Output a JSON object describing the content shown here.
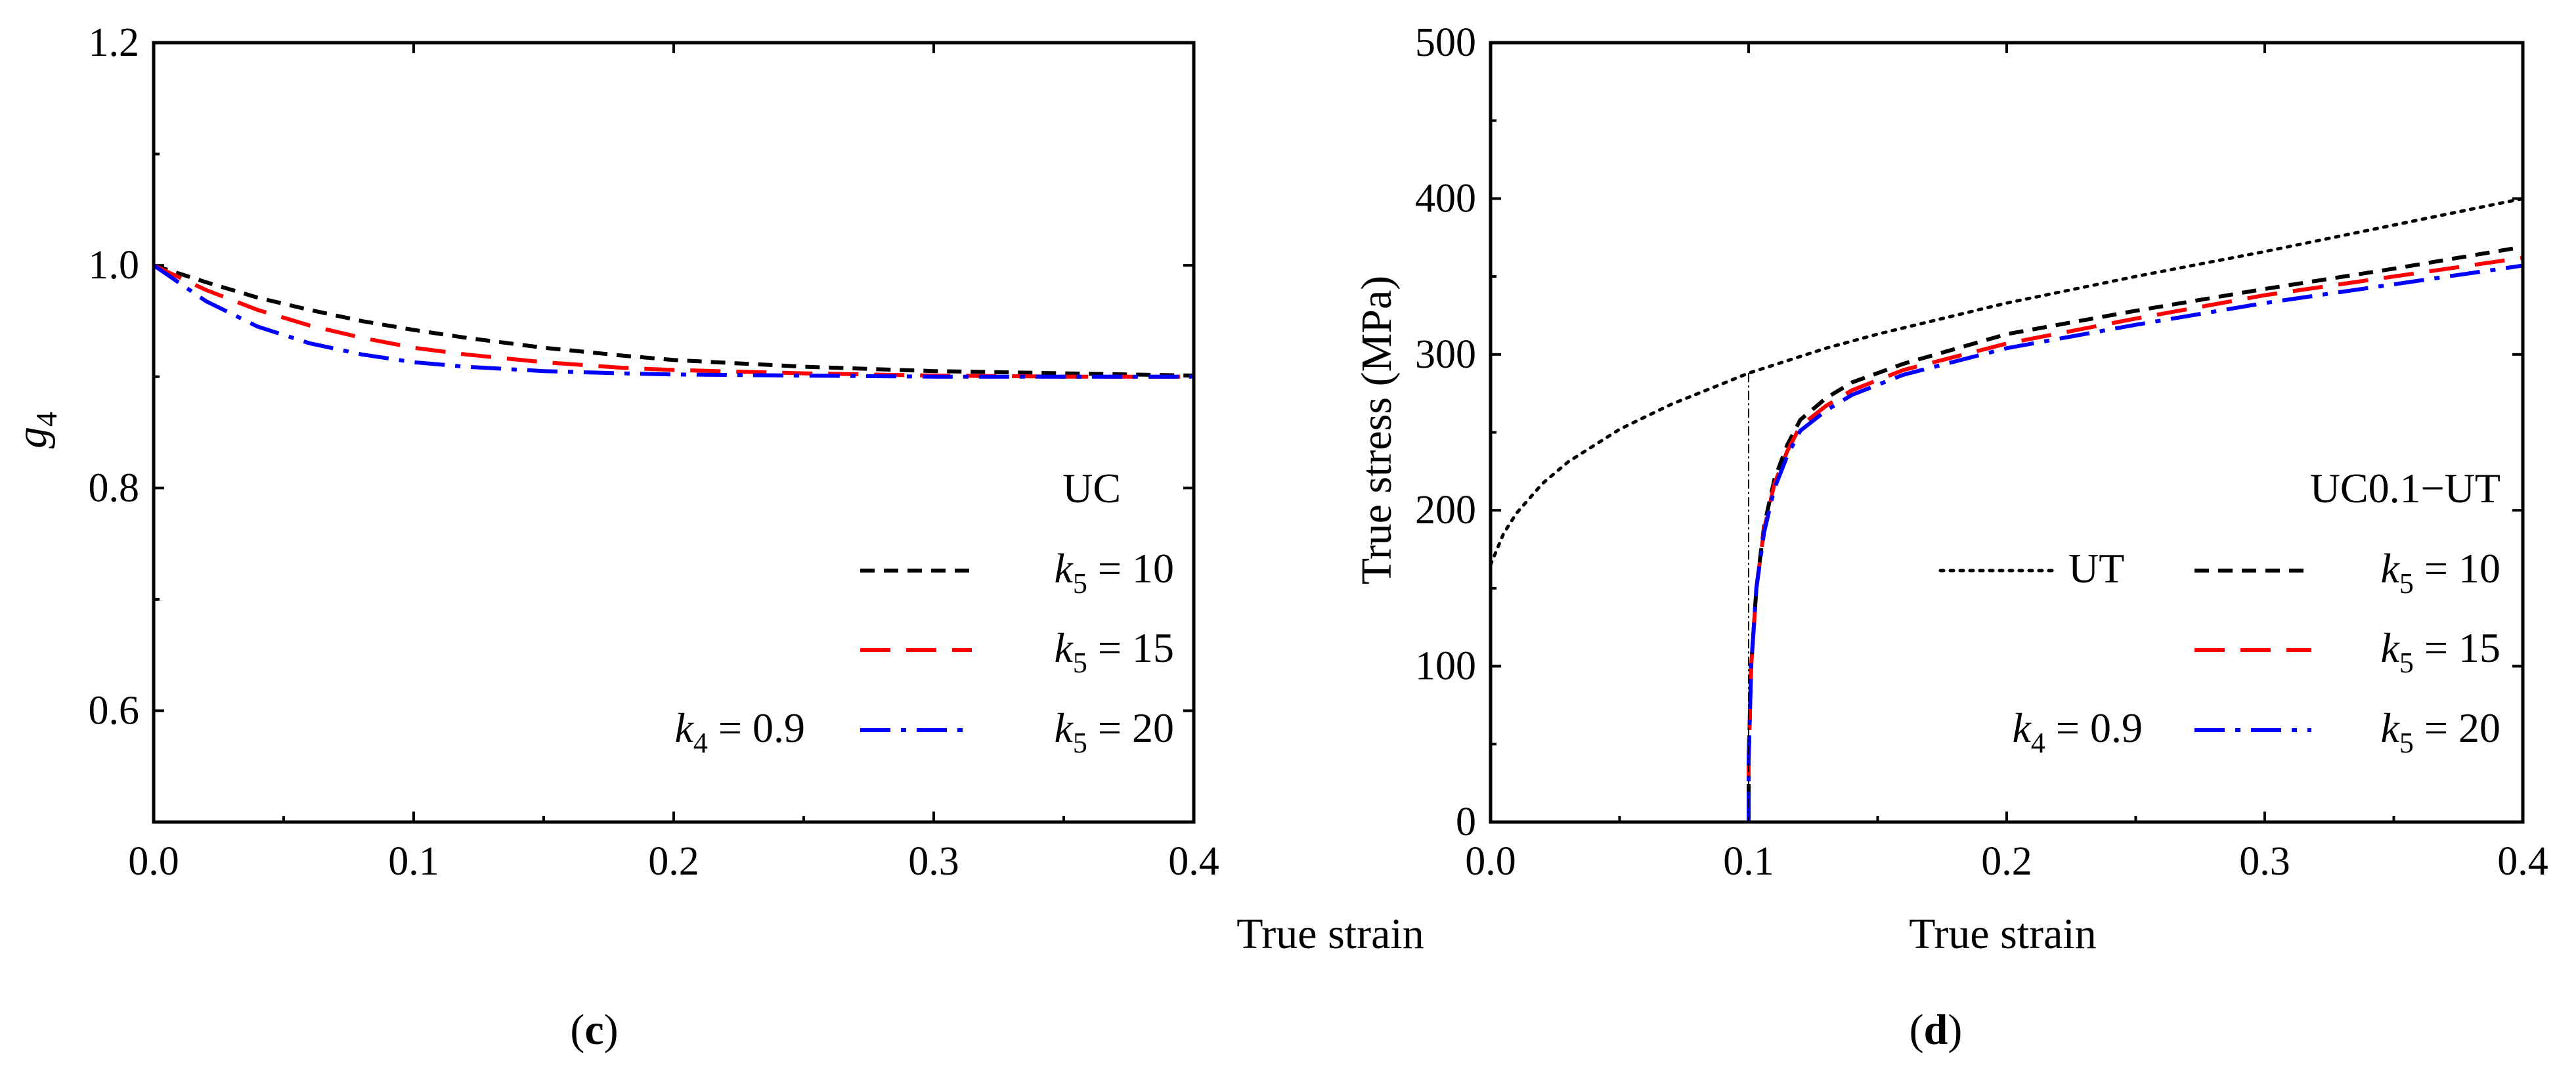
{
  "colors": {
    "black": "#000000",
    "red": "#ff0000",
    "blue": "#0000ff"
  },
  "chart_data": [
    {
      "type": "line",
      "panel": "c",
      "panel_label": {
        "open": "(",
        "letter": "c",
        "close": ")"
      },
      "title": "",
      "xlabel": "True strain",
      "ylabel": {
        "base": "g",
        "sub": "4"
      },
      "xlim": [
        0.0,
        0.4
      ],
      "ylim": [
        0.5,
        1.2
      ],
      "xticks": [
        "0.0",
        "0.1",
        "0.2",
        "0.3",
        "0.4"
      ],
      "yticks": [
        "0.6",
        "0.8",
        "1.0",
        "1.2"
      ],
      "annotation_top": "UC",
      "annotation_k4": {
        "var": "k",
        "sub": "4",
        "value": " = 0.9"
      },
      "legend_position": "bottom-right",
      "series": [
        {
          "name": "k5 = 10",
          "label_var": "k",
          "label_sub": "5",
          "label_value": " = 10",
          "color": "#000000",
          "style": "short-dash",
          "x": [
            0,
            0.02,
            0.04,
            0.06,
            0.08,
            0.1,
            0.12,
            0.15,
            0.18,
            0.2,
            0.25,
            0.3,
            0.35,
            0.4
          ],
          "y": [
            1.0,
            0.985,
            0.971,
            0.96,
            0.95,
            0.942,
            0.935,
            0.926,
            0.919,
            0.915,
            0.909,
            0.905,
            0.903,
            0.901
          ]
        },
        {
          "name": "k5 = 15",
          "label_var": "k",
          "label_sub": "5",
          "label_value": " = 15",
          "color": "#ff0000",
          "style": "long-dash",
          "x": [
            0,
            0.02,
            0.04,
            0.06,
            0.08,
            0.1,
            0.12,
            0.15,
            0.18,
            0.2,
            0.25,
            0.3,
            0.35,
            0.4
          ],
          "y": [
            1.0,
            0.978,
            0.96,
            0.946,
            0.935,
            0.926,
            0.92,
            0.913,
            0.908,
            0.906,
            0.903,
            0.901,
            0.9,
            0.9
          ]
        },
        {
          "name": "k5 = 20",
          "label_var": "k",
          "label_sub": "5",
          "label_value": " = 20",
          "color": "#0000ff",
          "style": "dash-dot",
          "x": [
            0,
            0.02,
            0.04,
            0.06,
            0.08,
            0.1,
            0.12,
            0.15,
            0.18,
            0.2,
            0.25,
            0.3,
            0.35,
            0.4
          ],
          "y": [
            1.0,
            0.968,
            0.945,
            0.93,
            0.92,
            0.913,
            0.909,
            0.905,
            0.903,
            0.902,
            0.901,
            0.9,
            0.9,
            0.9
          ]
        }
      ]
    },
    {
      "type": "line",
      "panel": "d",
      "panel_label": {
        "open": "(",
        "letter": "d",
        "close": ")"
      },
      "title": "",
      "xlabel": "True strain",
      "ylabel": "True stress (MPa)",
      "xlim": [
        0.0,
        0.4
      ],
      "ylim": [
        0,
        500
      ],
      "xticks": [
        "0.0",
        "0.1",
        "0.2",
        "0.3",
        "0.4"
      ],
      "yticks": [
        "0",
        "100",
        "200",
        "300",
        "400",
        "500"
      ],
      "annotation_top": "UC0.1−UT",
      "annotation_k4": {
        "var": "k",
        "sub": "4",
        "value": " = 0.9"
      },
      "legend_position": "bottom-right",
      "series": [
        {
          "name": "UT",
          "label_text": "UT",
          "color": "#000000",
          "style": "dotted",
          "x": [
            0,
            0.005,
            0.01,
            0.02,
            0.03,
            0.05,
            0.07,
            0.1,
            0.13,
            0.15,
            0.2,
            0.25,
            0.3,
            0.35,
            0.4
          ],
          "y": [
            165,
            185,
            198,
            217,
            231,
            252,
            268,
            288,
            304,
            313,
            333,
            350,
            366,
            383,
            400
          ]
        },
        {
          "name": "k5 = 10",
          "label_var": "k",
          "label_sub": "5",
          "label_value": " = 10",
          "color": "#000000",
          "style": "short-dash",
          "x": [
            0.1,
            0.1,
            0.101,
            0.103,
            0.106,
            0.11,
            0.115,
            0.12,
            0.13,
            0.14,
            0.16,
            0.2,
            0.25,
            0.3,
            0.35,
            0.4
          ],
          "y": [
            0,
            40,
            100,
            150,
            190,
            220,
            242,
            258,
            272,
            282,
            294,
            313,
            328,
            342,
            355,
            369
          ]
        },
        {
          "name": "k5 = 15",
          "label_var": "k",
          "label_sub": "5",
          "label_value": " = 15",
          "color": "#ff0000",
          "style": "long-dash",
          "x": [
            0.1,
            0.1,
            0.101,
            0.103,
            0.106,
            0.11,
            0.115,
            0.12,
            0.13,
            0.14,
            0.16,
            0.2,
            0.25,
            0.3,
            0.35,
            0.4
          ],
          "y": [
            0,
            40,
            100,
            150,
            188,
            217,
            238,
            254,
            267,
            277,
            290,
            307,
            323,
            338,
            350,
            362
          ]
        },
        {
          "name": "k5 = 20",
          "label_var": "k",
          "label_sub": "5",
          "label_value": " = 20",
          "color": "#0000ff",
          "style": "dash-dot",
          "x": [
            0.1,
            0.1,
            0.101,
            0.103,
            0.106,
            0.11,
            0.115,
            0.12,
            0.13,
            0.14,
            0.16,
            0.2,
            0.25,
            0.3,
            0.35,
            0.4
          ],
          "y": [
            0,
            40,
            100,
            150,
            186,
            214,
            235,
            251,
            264,
            274,
            287,
            304,
            319,
            333,
            345,
            357
          ]
        }
      ]
    }
  ]
}
